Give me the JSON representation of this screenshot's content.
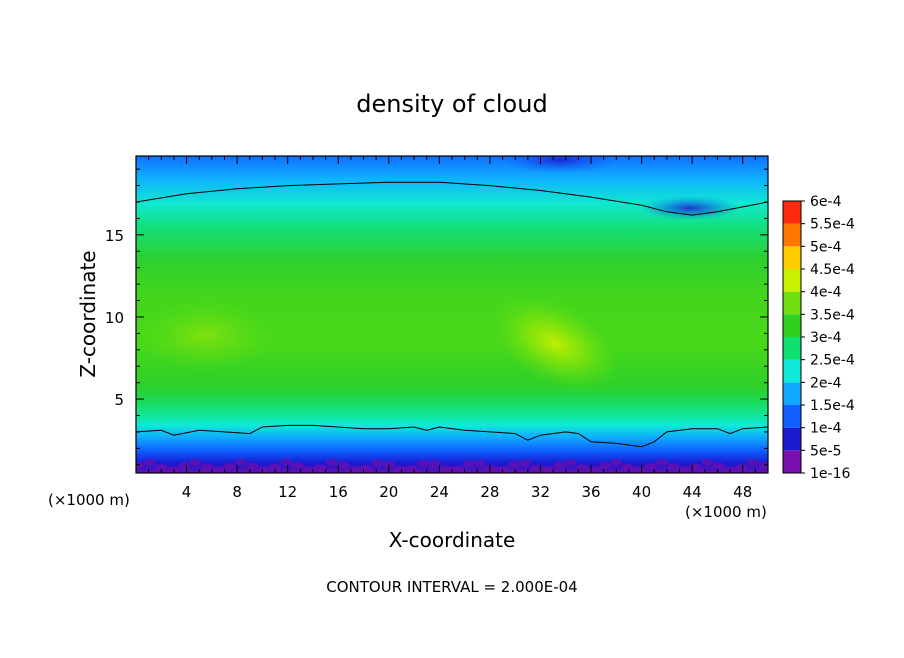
{
  "chart_data": {
    "type": "heatmap",
    "title": "density of cloud",
    "xlabel": "X-coordinate",
    "ylabel": "Z-coordinate",
    "x_unit": "(×1000 m)",
    "z_unit": "(×1000 m)",
    "xlim": [
      0,
      50
    ],
    "ylim": [
      0.5,
      19.8
    ],
    "x_ticks": [
      4,
      8,
      12,
      16,
      20,
      24,
      28,
      32,
      36,
      40,
      44,
      48
    ],
    "y_ticks": [
      5,
      10,
      15
    ],
    "footer": "CONTOUR INTERVAL = 2.000E-04",
    "colorbar": {
      "labels": [
        "1e-16",
        "5e-5",
        "1e-4",
        "1.5e-4",
        "2e-4",
        "2.5e-4",
        "3e-4",
        "3.5e-4",
        "4e-4",
        "4.5e-4",
        "5e-4",
        "5.5e-4",
        "6e-4"
      ],
      "values": [
        0,
        5e-05,
        0.0001,
        0.00015,
        0.0002,
        0.00025,
        0.0003,
        0.00035,
        0.0004,
        0.00045,
        0.0005,
        0.00055,
        0.0006
      ],
      "colors": [
        "#7a0fb0",
        "#1a1ad0",
        "#1060ff",
        "#10a8ff",
        "#10e8d8",
        "#10e070",
        "#30d020",
        "#70e010",
        "#c8f000",
        "#ffcc00",
        "#ff7700",
        "#ff2a10",
        "#ff9090"
      ]
    },
    "contour_lines": [
      {
        "level": 0.0002,
        "points": [
          [
            0,
            17.0
          ],
          [
            4,
            17.5
          ],
          [
            8,
            17.8
          ],
          [
            12,
            18.0
          ],
          [
            16,
            18.1
          ],
          [
            20,
            18.2
          ],
          [
            24,
            18.2
          ],
          [
            28,
            18.0
          ],
          [
            32,
            17.7
          ],
          [
            36,
            17.3
          ],
          [
            40,
            16.8
          ],
          [
            42,
            16.4
          ],
          [
            44,
            16.2
          ],
          [
            46,
            16.4
          ],
          [
            48,
            16.7
          ],
          [
            50,
            17.0
          ]
        ]
      },
      {
        "level": 0.0002,
        "points": [
          [
            0,
            3.0
          ],
          [
            2,
            3.1
          ],
          [
            3,
            2.8
          ],
          [
            5,
            3.1
          ],
          [
            7,
            3.0
          ],
          [
            9,
            2.9
          ],
          [
            10,
            3.3
          ],
          [
            12,
            3.4
          ],
          [
            14,
            3.4
          ],
          [
            16,
            3.3
          ],
          [
            18,
            3.2
          ],
          [
            20,
            3.2
          ],
          [
            22,
            3.3
          ],
          [
            23,
            3.1
          ],
          [
            24,
            3.3
          ],
          [
            26,
            3.1
          ],
          [
            28,
            3.0
          ],
          [
            30,
            2.9
          ],
          [
            31,
            2.5
          ],
          [
            32,
            2.8
          ],
          [
            34,
            3.0
          ],
          [
            35,
            2.9
          ],
          [
            36,
            2.4
          ],
          [
            38,
            2.3
          ],
          [
            40,
            2.1
          ],
          [
            41,
            2.4
          ],
          [
            42,
            3.0
          ],
          [
            44,
            3.2
          ],
          [
            46,
            3.2
          ],
          [
            47,
            2.9
          ],
          [
            48,
            3.2
          ],
          [
            50,
            3.3
          ]
        ]
      }
    ],
    "field_samples": {
      "description_levels_by_z": [
        [
          0.5,
          2e-05
        ],
        [
          1.0,
          4e-05
        ],
        [
          1.5,
          8e-05
        ],
        [
          2.0,
          0.00013
        ],
        [
          2.5,
          0.00017
        ],
        [
          3.2,
          0.0002
        ],
        [
          4.0,
          0.00025
        ],
        [
          5.0,
          0.0003
        ],
        [
          6.5,
          0.00034
        ],
        [
          8.5,
          0.00036
        ],
        [
          10.5,
          0.00035
        ],
        [
          12.5,
          0.00033
        ],
        [
          14.5,
          0.0003
        ],
        [
          16.2,
          0.00025
        ],
        [
          17.7,
          0.0002
        ],
        [
          18.7,
          0.00015
        ],
        [
          19.8,
          0.00011
        ]
      ],
      "maxima": [
        {
          "x": 33.5,
          "z": 7.8,
          "value": 0.00041
        },
        {
          "x": 8,
          "z": 8.5,
          "value": 0.00037
        }
      ]
    }
  }
}
